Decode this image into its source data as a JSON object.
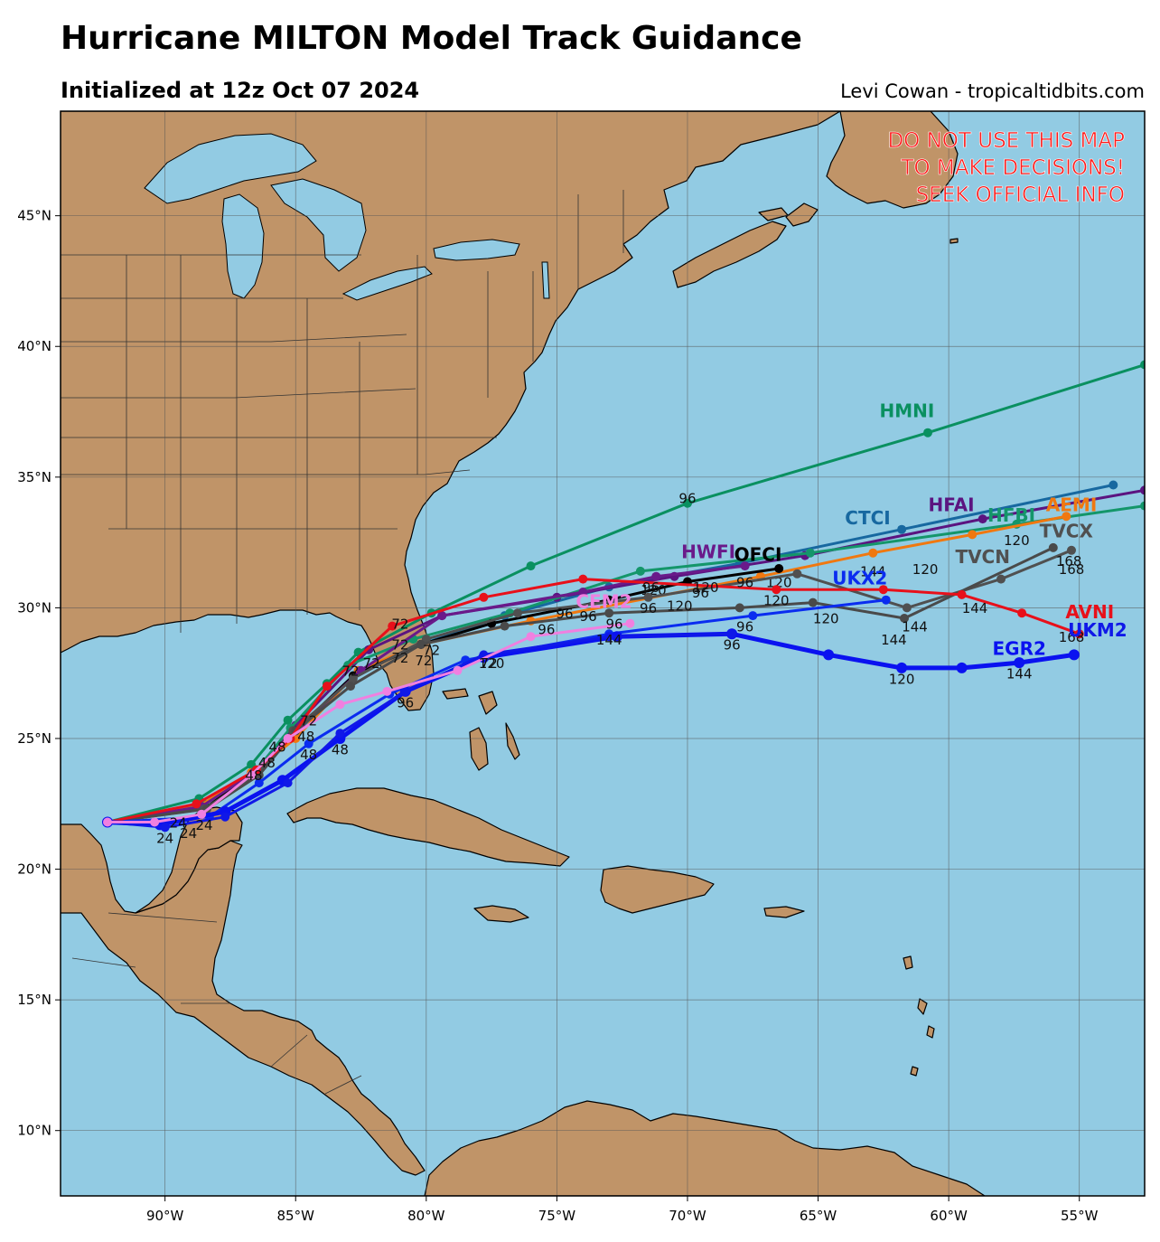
{
  "header": {
    "title": "Hurricane MILTON Model Track Guidance",
    "subtitle": "Initialized at 12z Oct 07 2024",
    "credit": "Levi Cowan - tropicaltidbits.com"
  },
  "warning": [
    "DO NOT USE THIS MAP",
    "TO MAKE DECISIONS!",
    "SEEK OFFICIAL INFO"
  ],
  "colors": {
    "ocean": "#92cbe3",
    "land": "#c09468",
    "lake": "#92cbe3",
    "warning": "#ff1a1a"
  },
  "axes": {
    "lon_ticks": [
      "90°W",
      "85°W",
      "80°W",
      "75°W",
      "70°W",
      "65°W",
      "60°W",
      "55°W"
    ],
    "lat_ticks": [
      "10°N",
      "15°N",
      "20°N",
      "25°N",
      "30°N",
      "35°N",
      "40°N",
      "45°N"
    ]
  },
  "chart_data": {
    "type": "map",
    "lon_range": [
      -94.0,
      -52.5
    ],
    "lat_range": [
      7.5,
      49.0
    ],
    "grid": true,
    "tracks": [
      {
        "name": "HMNI",
        "color": "#0a9060",
        "width": 3,
        "points": [
          [
            -92.2,
            21.8
          ],
          [
            -88.7,
            22.7
          ],
          [
            -86.7,
            24.0
          ],
          [
            -85.3,
            25.7
          ],
          [
            -83.8,
            27.1
          ],
          [
            -82.6,
            28.3
          ],
          [
            -79.8,
            29.8
          ],
          [
            -76.0,
            31.6
          ],
          [
            -70.0,
            34.0
          ],
          [
            -60.8,
            36.7
          ],
          [
            -52.5,
            39.3
          ]
        ],
        "hour_labels": [
          {
            "lon": -70.0,
            "lat": 34.0,
            "h": "96"
          }
        ]
      },
      {
        "name": "CTCI",
        "color": "#1768a0",
        "width": 3,
        "points": [
          [
            -92.2,
            21.8
          ],
          [
            -88.5,
            22.5
          ],
          [
            -86.5,
            23.8
          ],
          [
            -85.0,
            25.2
          ],
          [
            -82.8,
            27.4
          ],
          [
            -80.2,
            28.6
          ],
          [
            -77.0,
            29.7
          ],
          [
            -73.0,
            30.8
          ],
          [
            -68.0,
            31.7
          ],
          [
            -61.8,
            33.0
          ],
          [
            -53.7,
            34.7
          ]
        ]
      },
      {
        "name": "HFAI",
        "color": "#5b1480",
        "width": 3,
        "points": [
          [
            -92.2,
            21.8
          ],
          [
            -88.6,
            22.4
          ],
          [
            -86.5,
            23.8
          ],
          [
            -85.0,
            25.5
          ],
          [
            -82.2,
            28.4
          ],
          [
            -79.4,
            29.7
          ],
          [
            -75.0,
            30.4
          ],
          [
            -70.5,
            31.2
          ],
          [
            -65.5,
            32.0
          ],
          [
            -58.7,
            33.4
          ],
          [
            -52.5,
            34.5
          ]
        ]
      },
      {
        "name": "HFBI",
        "color": "#14966a",
        "width": 3,
        "points": [
          [
            -92.2,
            21.8
          ],
          [
            -88.5,
            22.5
          ],
          [
            -86.5,
            23.8
          ],
          [
            -85.2,
            25.4
          ],
          [
            -83.0,
            27.8
          ],
          [
            -80.5,
            28.8
          ],
          [
            -76.8,
            29.8
          ],
          [
            -71.8,
            31.4
          ],
          [
            -65.3,
            32.1
          ],
          [
            -57.4,
            33.2
          ],
          [
            -52.5,
            33.9
          ]
        ]
      },
      {
        "name": "AEMI",
        "color": "#f07810",
        "width": 3,
        "points": [
          [
            -92.2,
            21.8
          ],
          [
            -88.7,
            22.4
          ],
          [
            -86.7,
            23.7
          ],
          [
            -85.0,
            25.0
          ],
          [
            -82.6,
            27.6
          ],
          [
            -80.2,
            28.6
          ],
          [
            -76.0,
            29.5
          ],
          [
            -67.2,
            31.2
          ],
          [
            -62.9,
            32.1
          ],
          [
            -59.1,
            32.8
          ],
          [
            -55.5,
            33.5
          ]
        ],
        "hour_labels": [
          {
            "lon": -57.4,
            "lat": 32.4,
            "h": "120"
          }
        ]
      },
      {
        "name": "OFCI",
        "color": "#000000",
        "width": 3,
        "points": [
          [
            -92.2,
            21.8
          ],
          [
            -88.5,
            22.3
          ],
          [
            -86.6,
            23.7
          ],
          [
            -85.0,
            25.3
          ],
          [
            -82.8,
            27.4
          ],
          [
            -80.2,
            28.6
          ],
          [
            -77.5,
            29.4
          ],
          [
            -73.0,
            30.3
          ],
          [
            -70.0,
            31.0
          ],
          [
            -66.5,
            31.5
          ]
        ],
        "hour_labels": [
          {
            "lon": -66.5,
            "lat": 30.8,
            "h": "120"
          }
        ]
      },
      {
        "name": "HWFI",
        "color": "#6a1a8a",
        "width": 3,
        "points": [
          [
            -92.2,
            21.8
          ],
          [
            -88.6,
            22.4
          ],
          [
            -86.6,
            23.7
          ],
          [
            -84.8,
            25.5
          ],
          [
            -82.5,
            27.6
          ],
          [
            -79.4,
            29.7
          ],
          [
            -74.0,
            30.6
          ],
          [
            -71.2,
            31.2
          ],
          [
            -67.8,
            31.6
          ]
        ],
        "hour_labels": [
          {
            "lon": -71.3,
            "lat": 30.5,
            "h": "120"
          }
        ]
      },
      {
        "name": "TVCX",
        "color": "#505050",
        "width": 3,
        "points": [
          [
            -92.2,
            21.8
          ],
          [
            -88.5,
            22.3
          ],
          [
            -86.5,
            23.6
          ],
          [
            -85.1,
            25.3
          ],
          [
            -82.8,
            27.3
          ],
          [
            -80.0,
            28.8
          ],
          [
            -76.5,
            29.8
          ],
          [
            -71.5,
            30.4
          ],
          [
            -65.8,
            31.3
          ],
          [
            -61.6,
            30.0
          ],
          [
            -58.0,
            31.1
          ],
          [
            -55.3,
            32.2
          ]
        ],
        "hour_labels": [
          {
            "lon": -55.3,
            "lat": 31.3,
            "h": "168"
          }
        ]
      },
      {
        "name": "TVCN",
        "color": "#4a4a4a",
        "width": 3,
        "points": [
          [
            -92.2,
            21.8
          ],
          [
            -88.4,
            22.3
          ],
          [
            -86.4,
            23.6
          ],
          [
            -85.0,
            25.3
          ],
          [
            -82.9,
            27.0
          ],
          [
            -80.2,
            28.6
          ],
          [
            -77.0,
            29.3
          ],
          [
            -73.0,
            29.8
          ],
          [
            -68.0,
            30.0
          ],
          [
            -65.2,
            30.2
          ],
          [
            -61.7,
            29.6
          ],
          [
            -56.0,
            32.3
          ]
        ],
        "hour_labels": [
          {
            "lon": -55.4,
            "lat": 31.6,
            "h": "168"
          },
          {
            "lon": -64.7,
            "lat": 29.4,
            "h": "120"
          }
        ]
      },
      {
        "name": "UKX2",
        "color": "#0a2cf0",
        "width": 3,
        "points": [
          [
            -92.2,
            21.8
          ],
          [
            -88.3,
            22.0
          ],
          [
            -86.4,
            23.3
          ],
          [
            -84.5,
            24.8
          ],
          [
            -81.4,
            26.7
          ],
          [
            -78.5,
            28.0
          ],
          [
            -73.0,
            29.0
          ],
          [
            -67.5,
            29.7
          ],
          [
            -62.4,
            30.3
          ]
        ],
        "hour_labels": [
          {
            "lon": -67.8,
            "lat": 29.1,
            "h": "96"
          }
        ]
      },
      {
        "name": "AVNI",
        "color": "#e8101a",
        "width": 3,
        "points": [
          [
            -92.2,
            21.8
          ],
          [
            -88.8,
            22.5
          ],
          [
            -86.5,
            23.8
          ],
          [
            -85.2,
            25.0
          ],
          [
            -83.8,
            27.0
          ],
          [
            -81.3,
            29.3
          ],
          [
            -77.8,
            30.4
          ],
          [
            -74.0,
            31.1
          ],
          [
            -66.6,
            30.7
          ],
          [
            -62.5,
            30.7
          ],
          [
            -59.5,
            30.5
          ],
          [
            -57.2,
            29.8
          ],
          [
            -55.0,
            29.0
          ]
        ],
        "hour_labels": [
          {
            "lon": -59.0,
            "lat": 29.8,
            "h": "144"
          }
        ]
      },
      {
        "name": "EGR2",
        "color": "#0a12f0",
        "width": 5,
        "points": [
          [
            -92.2,
            21.8
          ],
          [
            -90.2,
            21.7
          ],
          [
            -87.7,
            22.2
          ],
          [
            -85.5,
            23.4
          ],
          [
            -83.3,
            25.0
          ],
          [
            -80.8,
            26.8
          ],
          [
            -77.8,
            28.1
          ],
          [
            -72.7,
            28.9
          ],
          [
            -68.3,
            29.0
          ],
          [
            -64.6,
            28.2
          ],
          [
            -61.8,
            27.7
          ],
          [
            -59.5,
            27.7
          ],
          [
            -57.3,
            27.9
          ],
          [
            -55.2,
            28.2
          ]
        ],
        "hour_labels": [
          {
            "lon": -61.8,
            "lat": 27.1,
            "h": "120"
          },
          {
            "lon": -57.3,
            "lat": 27.3,
            "h": "144"
          },
          {
            "lon": -68.3,
            "lat": 28.4,
            "h": "96"
          }
        ]
      },
      {
        "name": "UKM2",
        "color": "#1018e8",
        "width": 3,
        "points": [
          [
            -92.2,
            21.8
          ],
          [
            -90.0,
            21.6
          ],
          [
            -87.7,
            22.0
          ],
          [
            -85.3,
            23.3
          ],
          [
            -83.3,
            25.2
          ],
          [
            -80.8,
            26.8
          ],
          [
            -77.8,
            28.2
          ],
          [
            -73.0,
            28.9
          ],
          [
            -68.3,
            29.0
          ]
        ],
        "hour_labels": [
          {
            "lon": -55.3,
            "lat": 28.7,
            "h": "168"
          }
        ]
      },
      {
        "name": "CEM2",
        "color": "#f080e0",
        "width": 3,
        "points": [
          [
            -92.2,
            21.8
          ],
          [
            -90.4,
            21.8
          ],
          [
            -88.6,
            22.1
          ],
          [
            -86.7,
            23.6
          ],
          [
            -85.3,
            25.0
          ],
          [
            -83.3,
            26.3
          ],
          [
            -81.5,
            26.8
          ],
          [
            -78.8,
            27.6
          ],
          [
            -76.0,
            28.9
          ],
          [
            -72.2,
            29.4
          ]
        ],
        "hour_labels": [
          {
            "lon": -80.8,
            "lat": 26.2,
            "h": "96"
          }
        ]
      }
    ],
    "track_labels": [
      {
        "text": "HMNI",
        "lon": -61.6,
        "lat": 37.3,
        "color": "#0a9060"
      },
      {
        "text": "CTCI",
        "lon": -63.1,
        "lat": 33.2,
        "color": "#1768a0"
      },
      {
        "text": "HFAI",
        "lon": -59.9,
        "lat": 33.7,
        "color": "#5b1480"
      },
      {
        "text": "HFBI",
        "lon": -57.6,
        "lat": 33.3,
        "color": "#14966a"
      },
      {
        "text": "AEMI",
        "lon": -55.3,
        "lat": 33.7,
        "color": "#f07810"
      },
      {
        "text": "TVCX",
        "lon": -55.5,
        "lat": 32.7,
        "color": "#505050"
      },
      {
        "text": "TVCN",
        "lon": -58.7,
        "lat": 31.7,
        "color": "#505050"
      },
      {
        "text": "HWFI",
        "lon": -69.2,
        "lat": 31.9,
        "color": "#6a1a8a"
      },
      {
        "text": "OFCI",
        "lon": -67.3,
        "lat": 31.8,
        "color": "#000000"
      },
      {
        "text": "UKX2",
        "lon": -63.4,
        "lat": 30.9,
        "color": "#0a2cf0"
      },
      {
        "text": "AVNI",
        "lon": -54.6,
        "lat": 29.6,
        "color": "#e8101a"
      },
      {
        "text": "UKM2",
        "lon": -54.3,
        "lat": 28.9,
        "color": "#1018e8"
      },
      {
        "text": "EGR2",
        "lon": -57.3,
        "lat": 28.2,
        "color": "#0a12f0"
      },
      {
        "text": "CEM2",
        "lon": -73.2,
        "lat": 30.0,
        "color": "#f080e0"
      }
    ],
    "hour_text": [
      {
        "lon": -60.9,
        "lat": 31.3,
        "h": "120"
      },
      {
        "lon": -62.9,
        "lat": 31.2,
        "h": "144"
      },
      {
        "lon": -66.6,
        "lat": 30.1,
        "h": "120"
      },
      {
        "lon": -70.3,
        "lat": 29.9,
        "h": "120"
      },
      {
        "lon": -71.5,
        "lat": 29.8,
        "h": "96"
      },
      {
        "lon": -73.8,
        "lat": 29.5,
        "h": "96"
      },
      {
        "lon": -72.8,
        "lat": 29.2,
        "h": "96"
      },
      {
        "lon": -75.4,
        "lat": 29.0,
        "h": "96"
      },
      {
        "lon": -74.7,
        "lat": 29.6,
        "h": "96"
      },
      {
        "lon": -71.4,
        "lat": 30.6,
        "h": "96"
      },
      {
        "lon": -69.5,
        "lat": 30.4,
        "h": "96"
      },
      {
        "lon": -67.8,
        "lat": 30.8,
        "h": "96"
      },
      {
        "lon": -69.3,
        "lat": 30.6,
        "h": "120"
      },
      {
        "lon": -73.0,
        "lat": 28.6,
        "h": "144"
      },
      {
        "lon": -62.1,
        "lat": 28.6,
        "h": "144"
      },
      {
        "lon": -61.3,
        "lat": 29.1,
        "h": "144"
      },
      {
        "lon": -77.5,
        "lat": 27.7,
        "h": "120"
      },
      {
        "lon": -77.6,
        "lat": 27.7,
        "h": "72"
      },
      {
        "lon": -81.0,
        "lat": 29.2,
        "h": "72"
      },
      {
        "lon": -81.0,
        "lat": 28.4,
        "h": "72"
      },
      {
        "lon": -82.1,
        "lat": 27.7,
        "h": "72"
      },
      {
        "lon": -81.0,
        "lat": 27.9,
        "h": "72"
      },
      {
        "lon": -80.1,
        "lat": 27.8,
        "h": "72"
      },
      {
        "lon": -84.5,
        "lat": 25.5,
        "h": "72"
      },
      {
        "lon": -82.9,
        "lat": 27.4,
        "h": "72"
      },
      {
        "lon": -79.8,
        "lat": 28.2,
        "h": "72"
      },
      {
        "lon": -84.5,
        "lat": 24.2,
        "h": "48"
      },
      {
        "lon": -83.3,
        "lat": 24.4,
        "h": "48"
      },
      {
        "lon": -84.6,
        "lat": 24.9,
        "h": "48"
      },
      {
        "lon": -86.6,
        "lat": 23.4,
        "h": "48"
      },
      {
        "lon": -85.7,
        "lat": 24.5,
        "h": "48"
      },
      {
        "lon": -86.1,
        "lat": 23.9,
        "h": "48"
      },
      {
        "lon": -89.1,
        "lat": 21.2,
        "h": "24"
      },
      {
        "lon": -90.0,
        "lat": 21.0,
        "h": "24"
      },
      {
        "lon": -88.5,
        "lat": 21.5,
        "h": "24"
      },
      {
        "lon": -89.5,
        "lat": 21.6,
        "h": "24"
      }
    ]
  }
}
